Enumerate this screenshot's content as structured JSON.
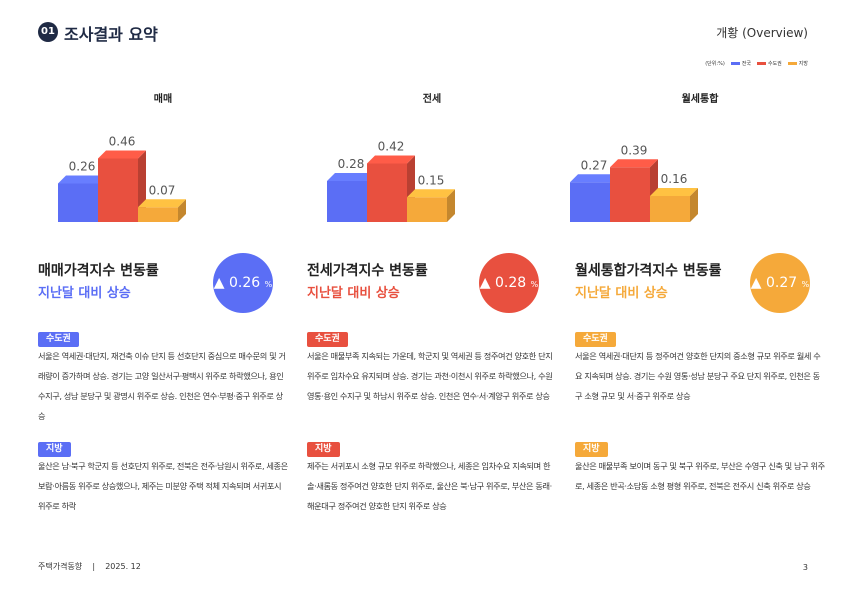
{
  "header": {
    "number": "01",
    "title": "조사결과 요약",
    "right": "개황 (Overview)"
  },
  "legend": {
    "unit": "(단위:%)",
    "items": [
      {
        "label": "전국",
        "color": "#5b6ef5"
      },
      {
        "label": "수도권",
        "color": "#e8503f"
      },
      {
        "label": "지방",
        "color": "#f5a93a"
      }
    ]
  },
  "chart_data": [
    {
      "type": "bar",
      "title": "매매",
      "categories": [
        "전국",
        "수도권",
        "지방"
      ],
      "values": [
        0.26,
        0.46,
        0.07
      ]
    },
    {
      "type": "bar",
      "title": "전세",
      "categories": [
        "전국",
        "수도권",
        "지방"
      ],
      "values": [
        0.28,
        0.42,
        0.15
      ]
    },
    {
      "type": "bar",
      "title": "월세통합",
      "categories": [
        "전국",
        "수도권",
        "지방"
      ],
      "values": [
        0.27,
        0.39,
        0.16
      ]
    }
  ],
  "columns": [
    {
      "heading": "매매가격지수 변동률",
      "subheading": "지난달 대비 상승",
      "value": "▲ 0.26",
      "unit": "%",
      "color": "#5b6ef5",
      "sections": [
        {
          "tag": "수도권",
          "text": "서울은 역세권·대단지, 재건축 이슈 단지 등 선호단지 중심으로 매수문의 및 거래량이 증가하며 상승. 경기는 고양 일산서구·평택시 위주로 하락했으나, 용인 수지구, 성남 분당구 및 광명시 위주로 상승. 인천은 연수·부평·중구 위주로 상승"
        },
        {
          "tag": "지방",
          "text": "울산은 남·북구 학군지 등 선호단지 위주로, 전북은 전주·남원시 위주로, 세종은 보람·아름동 위주로 상승했으나, 제주는 미분양 주택 적체 지속되며 서귀포시 위주로 하락"
        }
      ]
    },
    {
      "heading": "전세가격지수 변동률",
      "subheading": "지난달 대비 상승",
      "value": "▲ 0.28",
      "unit": "%",
      "color": "#e8503f",
      "sections": [
        {
          "tag": "수도권",
          "text": "서울은 매물부족 지속되는 가운데, 학군지 및 역세권 등 정주여건 양호한 단지 위주로 임차수요 유지되며 상승. 경기는 과천·이천시 위주로 하락했으나, 수원 영통·용인 수지구 및 하남시 위주로 상승. 인천은 연수·서·계양구 위주로 상승"
        },
        {
          "tag": "지방",
          "text": "제주는 서귀포시 소형 규모 위주로 하락했으나, 세종은 임차수요 지속되며 한솔·새롬동 정주여건 양호한 단지 위주로, 울산은 북·남구 위주로, 부산은 동래·해운대구 정주여건 양호한 단지 위주로 상승"
        }
      ]
    },
    {
      "heading": "월세통합가격지수 변동률",
      "subheading": "지난달 대비 상승",
      "value": "▲ 0.27",
      "unit": "%",
      "color": "#f5a93a",
      "sections": [
        {
          "tag": "수도권",
          "text": "서울은 역세권·대단지 등 정주여건 양호한 단지의 중소형 규모 위주로 월세 수요 지속되며 상승. 경기는 수원 영통·성남 분당구 주요 단지 위주로, 인천은 동구 소형 규모 및 서·중구 위주로 상승"
        },
        {
          "tag": "지방",
          "text": "울산은 매물부족 보이며 동구 및 북구 위주로, 부산은 수영구 신축 및 남구 위주로, 세종은 반곡·소담동 소형 평형 위주로, 전북은 전주시 신축 위주로 상승"
        }
      ]
    }
  ],
  "footer": {
    "source": "주택가격동향",
    "divider": "|",
    "date": "2025. 12",
    "page": "3"
  }
}
